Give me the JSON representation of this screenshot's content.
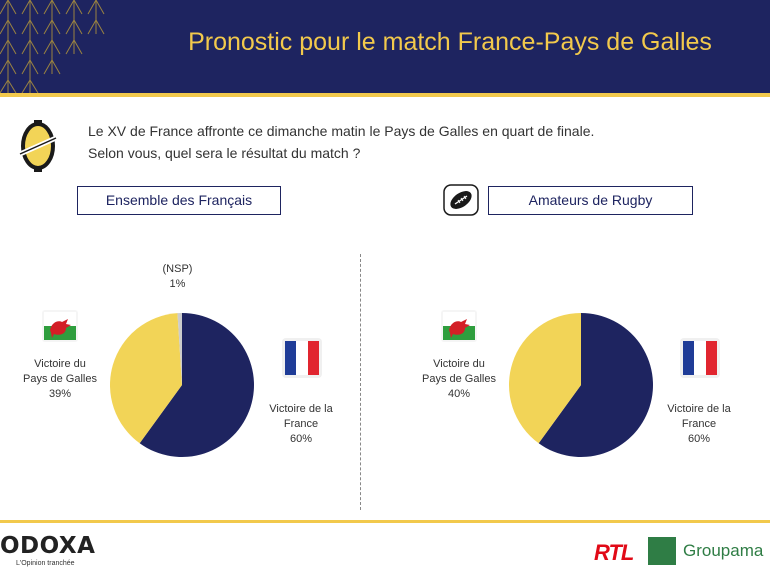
{
  "header": {
    "title": "Pronostic pour le match France-Pays de Galles"
  },
  "question": {
    "line1": "Le XV de France affronte ce dimanche matin le Pays de Galles en quart de finale.",
    "line2": "Selon vous, quel sera le résultat du match ?"
  },
  "segments": {
    "left": "Ensemble des Français",
    "right": "Amateurs de Rugby"
  },
  "colors": {
    "navy": "#1e2460",
    "yellow": "#f2d457",
    "gray": "#cccccc",
    "accent": "#f2c94c"
  },
  "icons": {
    "question": "coin-icon",
    "rugby": "rugby-ball-icon",
    "wales": "wales-flag-icon",
    "france": "france-flag-icon"
  },
  "chart_data": [
    {
      "type": "pie",
      "title": "Ensemble des Français",
      "slices": [
        {
          "label_line1": "Victoire de la",
          "label_line2": "France",
          "value": 60,
          "value_label": "60%",
          "color": "#1e2460"
        },
        {
          "label_line1": "Victoire du",
          "label_line2": "Pays de Galles",
          "value": 39,
          "value_label": "39%",
          "color": "#f2d457"
        },
        {
          "label_line1": "(NSP)",
          "label_line2": "",
          "value": 1,
          "value_label": "1%",
          "color": "#cccccc"
        }
      ]
    },
    {
      "type": "pie",
      "title": "Amateurs de Rugby",
      "slices": [
        {
          "label_line1": "Victoire de la",
          "label_line2": "France",
          "value": 60,
          "value_label": "60%",
          "color": "#1e2460"
        },
        {
          "label_line1": "Victoire du",
          "label_line2": "Pays de Galles",
          "value": 40,
          "value_label": "40%",
          "color": "#f2d457"
        }
      ]
    }
  ],
  "footer": {
    "odoxa_wordmark": "ODOXA",
    "odoxa_tagline": "L'Opinion tranchée",
    "rtl": "RTL",
    "groupama": "Groupama"
  }
}
